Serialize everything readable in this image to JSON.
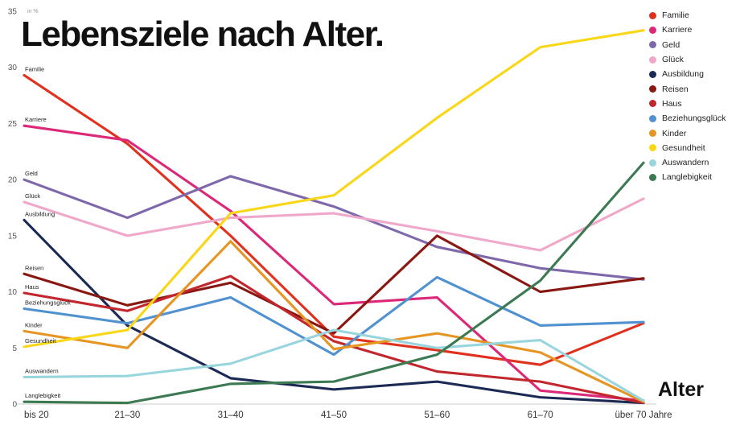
{
  "title": "Lebensziele nach Alter.",
  "y_axis_note": "in %",
  "x_axis_title": "Alter",
  "chart_data": {
    "type": "line",
    "title": "Lebensziele nach Alter.",
    "xlabel": "Alter",
    "ylabel": "in %",
    "ylim": [
      0,
      35
    ],
    "yticks": [
      0,
      5,
      10,
      15,
      20,
      25,
      30,
      35
    ],
    "grid": false,
    "legend_position": "top-right",
    "categories": [
      "bis 20",
      "21–30",
      "31–40",
      "41–50",
      "51–60",
      "61–70",
      "über 70 Jahre"
    ],
    "series": [
      {
        "name": "Familie",
        "color": "#e0301e",
        "values": [
          29.3,
          23.2,
          15.0,
          6.0,
          4.8,
          3.5,
          7.2
        ]
      },
      {
        "name": "Karriere",
        "color": "#dc2878",
        "values": [
          24.8,
          23.5,
          17.2,
          8.9,
          9.5,
          1.2,
          0.3
        ]
      },
      {
        "name": "Geld",
        "color": "#7e68ab",
        "values": [
          20.0,
          16.6,
          20.3,
          17.6,
          14.0,
          12.1,
          11.1
        ]
      },
      {
        "name": "Glück",
        "color": "#f0a8ca",
        "values": [
          18.0,
          15.0,
          16.6,
          17.0,
          15.4,
          13.7,
          18.3
        ]
      },
      {
        "name": "Ausbildung",
        "color": "#1b2a55",
        "values": [
          16.4,
          7.0,
          2.3,
          1.3,
          2.0,
          0.6,
          0.1
        ]
      },
      {
        "name": "Reisen",
        "color": "#8a1812",
        "values": [
          11.6,
          8.8,
          10.8,
          6.3,
          15.0,
          10.0,
          11.2
        ]
      },
      {
        "name": "Haus",
        "color": "#c2272d",
        "values": [
          9.9,
          8.3,
          11.4,
          5.6,
          2.9,
          2.0,
          0.1
        ]
      },
      {
        "name": "Beziehungsglück",
        "color": "#5091d0",
        "values": [
          8.5,
          7.2,
          9.5,
          4.4,
          11.3,
          7.0,
          7.3
        ]
      },
      {
        "name": "Kinder",
        "color": "#e69422",
        "values": [
          6.5,
          5.0,
          14.5,
          4.9,
          6.3,
          4.6,
          0.2
        ]
      },
      {
        "name": "Gesundheit",
        "color": "#f9d616",
        "values": [
          5.1,
          6.6,
          17.0,
          18.6,
          25.5,
          31.8,
          33.3
        ]
      },
      {
        "name": "Auswandern",
        "color": "#99d5dd",
        "values": [
          2.4,
          2.5,
          3.6,
          6.6,
          5.0,
          5.7,
          0.3
        ]
      },
      {
        "name": "Langlebigkeit",
        "color": "#3b7a52",
        "values": [
          0.2,
          0.1,
          1.8,
          2.0,
          4.4,
          11.0,
          21.5
        ]
      }
    ]
  }
}
